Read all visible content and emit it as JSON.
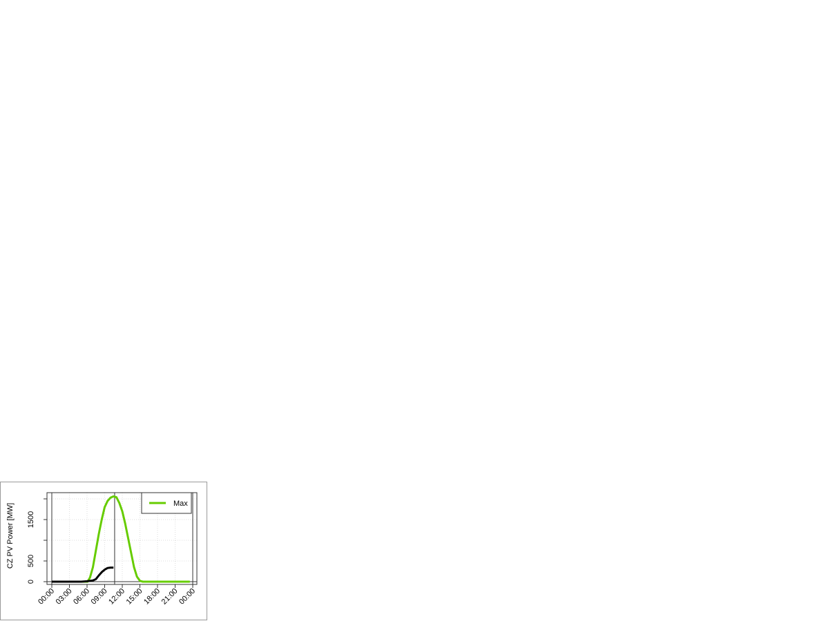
{
  "chart_data": {
    "type": "line",
    "ylabel": "CZ PV Power [MW]",
    "xlabel": "",
    "xlim_hours": [
      0,
      24
    ],
    "ylim": [
      0,
      2000
    ],
    "y_ticks": [
      0,
      500,
      1000,
      1500,
      2000
    ],
    "y_tick_labels": [
      "0",
      "500",
      "",
      "1500",
      ""
    ],
    "x_tick_labels": [
      "00:00",
      "03:00",
      "06:00",
      "09:00",
      "12:00",
      "15:00",
      "18:00",
      "21:00",
      "00:00"
    ],
    "grid": true,
    "vertical_markers_hours": [
      0,
      10.7,
      24
    ],
    "legend": {
      "placement": "top-right",
      "entries": [
        "Max"
      ]
    },
    "series": [
      {
        "name": "Max",
        "color": "#66cc00",
        "x": [
          0,
          6,
          6.1,
          6.5,
          7,
          7.5,
          8,
          8.5,
          9,
          9.5,
          10,
          10.5,
          11,
          11.5,
          12,
          12.5,
          13,
          13.5,
          14,
          14.5,
          15,
          15.5,
          16,
          18,
          20,
          22,
          23.5
        ],
        "values": [
          0,
          0,
          0,
          100,
          350,
          750,
          1150,
          1500,
          1800,
          1950,
          2030,
          2060,
          2040,
          1900,
          1700,
          1400,
          1050,
          700,
          350,
          120,
          20,
          0,
          0,
          0,
          0,
          0,
          0
        ]
      },
      {
        "color": "#000000",
        "x": [
          0,
          1,
          2,
          3,
          4,
          5,
          6,
          6.5,
          7,
          7.5,
          8,
          8.5,
          9,
          9.5,
          10,
          10.5
        ],
        "values": [
          0,
          0,
          0,
          0,
          0,
          0,
          10,
          20,
          30,
          60,
          150,
          230,
          290,
          330,
          340,
          340
        ]
      }
    ]
  }
}
